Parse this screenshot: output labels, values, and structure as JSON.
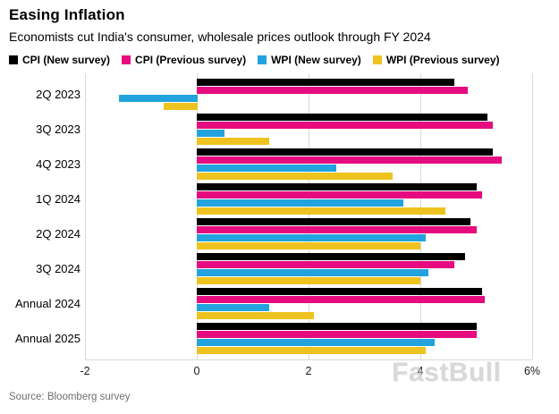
{
  "header": {
    "title": "Easing Inflation",
    "subtitle": "Economists cut India's consumer, wholesale prices outlook through FY 2024"
  },
  "legend": [
    {
      "label": "CPI (New survey)",
      "color": "#000000"
    },
    {
      "label": "CPI (Previous survey)",
      "color": "#e60c7f"
    },
    {
      "label": "WPI (New survey)",
      "color": "#23a3dd"
    },
    {
      "label": "WPI (Previous survey)",
      "color": "#eec31f"
    }
  ],
  "chart_data": {
    "type": "bar",
    "orientation": "horizontal",
    "title": "Easing Inflation",
    "subtitle": "Economists cut India's consumer, wholesale prices outlook through FY 2024",
    "categories": [
      "2Q 2023",
      "3Q 2023",
      "4Q 2023",
      "1Q 2024",
      "2Q 2024",
      "3Q 2024",
      "Annual 2024",
      "Annual 2025"
    ],
    "series": [
      {
        "name": "CPI (New survey)",
        "color": "#000000",
        "values": [
          4.6,
          5.2,
          5.3,
          5.0,
          4.9,
          4.8,
          5.1,
          5.0
        ]
      },
      {
        "name": "CPI (Previous survey)",
        "color": "#e60c7f",
        "values": [
          4.85,
          5.3,
          5.45,
          5.1,
          5.0,
          4.6,
          5.15,
          5.0
        ]
      },
      {
        "name": "WPI (New survey)",
        "color": "#23a3dd",
        "values": [
          -1.4,
          0.5,
          2.5,
          3.7,
          4.1,
          4.15,
          1.3,
          4.25
        ]
      },
      {
        "name": "WPI (Previous survey)",
        "color": "#eec31f",
        "values": [
          -0.6,
          1.3,
          3.5,
          4.45,
          4.0,
          4.0,
          2.1,
          4.1
        ]
      }
    ],
    "xlim": [
      -2,
      6
    ],
    "xticks": [
      -2,
      0,
      2,
      4,
      6
    ],
    "xtick_labels": [
      "-2",
      "0",
      "2",
      "4",
      "6%"
    ],
    "grid": true,
    "legend_position": "top",
    "unit": "%"
  },
  "footer": {
    "source": "Source: Bloomberg survey"
  },
  "watermark": "FastBull"
}
